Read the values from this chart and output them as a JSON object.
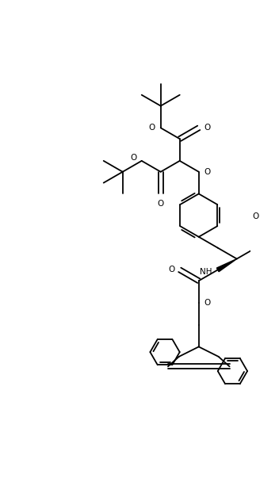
{
  "bg_color": "#ffffff",
  "line_color": "#000000",
  "line_width": 1.3,
  "fig_width": 3.52,
  "fig_height": 6.32,
  "dpi": 100,
  "xlim": [
    0,
    352
  ],
  "ylim": [
    0,
    632
  ]
}
